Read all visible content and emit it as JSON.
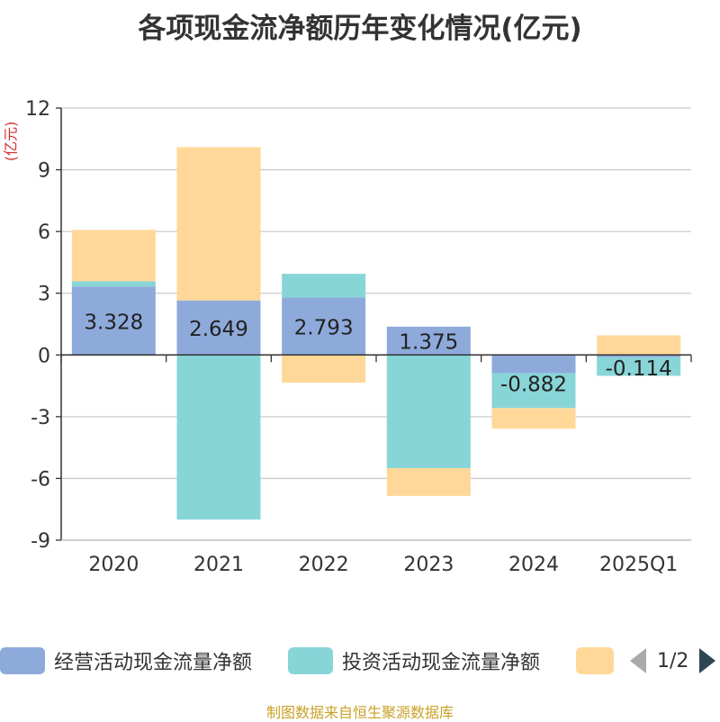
{
  "chart_data": {
    "type": "bar",
    "stacked": true,
    "title": "各项现金流净额历年变化情况(亿元)",
    "ylabel": "(亿元)",
    "ylim": [
      -9,
      12
    ],
    "yticks": [
      -9,
      -6,
      -3,
      0,
      3,
      6,
      9,
      12
    ],
    "categories": [
      "2020",
      "2021",
      "2022",
      "2023",
      "2024",
      "2025Q1"
    ],
    "series": [
      {
        "name": "经营活动现金流量净额",
        "color": "#8eaadb",
        "values": [
          3.328,
          2.649,
          2.793,
          1.375,
          -0.882,
          -0.114
        ],
        "labels": [
          "3.328",
          "2.649",
          "2.793",
          "1.375",
          "-0.882",
          "-0.114"
        ]
      },
      {
        "name": "投资活动现金流量净额",
        "color": "#88d5d8",
        "values": [
          0.25,
          -8.0,
          1.15,
          -5.5,
          -1.7,
          -0.9
        ]
      },
      {
        "name": "",
        "color": "#ffd899",
        "values": [
          2.5,
          7.45,
          -1.35,
          -1.35,
          -1.0,
          0.95
        ]
      }
    ],
    "grid": true,
    "legend_position": "bottom"
  },
  "legend": {
    "items": [
      {
        "label": "经营活动现金流量净额",
        "color": "#8eaadb"
      },
      {
        "label": "投资活动现金流量净额",
        "color": "#88d5d8"
      },
      {
        "label": "",
        "color": "#ffd899"
      }
    ],
    "page_indicator": "1/2"
  },
  "source_text": "制图数据来自恒生聚源数据库"
}
